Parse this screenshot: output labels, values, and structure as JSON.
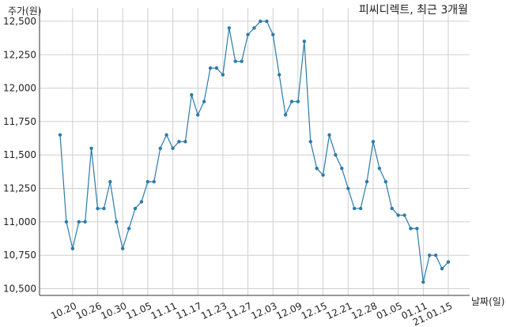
{
  "chart_data": {
    "type": "line",
    "title": "피씨디렉트, 최근 3개월",
    "ylabel": "주가(원)",
    "xlabel": "날짜(일)",
    "ylim": [
      10450,
      12600
    ],
    "yticks": [
      10500,
      10750,
      11000,
      11250,
      11500,
      11750,
      12000,
      12250,
      12500
    ],
    "ytick_labels": [
      "10,500",
      "10,750",
      "11,000",
      "11,250",
      "11,500",
      "11,750",
      "12,000",
      "12,250",
      "12,500"
    ],
    "xticks": [
      {
        "index": 2,
        "label": "10.20"
      },
      {
        "index": 6,
        "label": "10.26"
      },
      {
        "index": 10,
        "label": "10.30"
      },
      {
        "index": 14,
        "label": "11.05"
      },
      {
        "index": 18,
        "label": "11.11"
      },
      {
        "index": 22,
        "label": "11.17"
      },
      {
        "index": 26,
        "label": "11.23"
      },
      {
        "index": 30,
        "label": "11.27"
      },
      {
        "index": 34,
        "label": "12.03"
      },
      {
        "index": 38,
        "label": "12.09"
      },
      {
        "index": 42,
        "label": "12.15"
      },
      {
        "index": 46,
        "label": "12.21"
      },
      {
        "index": 50,
        "label": "12.28"
      },
      {
        "index": 54,
        "label": "01.05"
      },
      {
        "index": 58,
        "label": "01.11"
      },
      {
        "index": 62,
        "label": "21.01.15"
      }
    ],
    "grid": true,
    "series": [
      {
        "color": "#2b7bab",
        "values": [
          11650,
          11000,
          10800,
          11000,
          11000,
          11550,
          11100,
          11100,
          11300,
          11000,
          10800,
          10950,
          11100,
          11150,
          11300,
          11300,
          11550,
          11650,
          11550,
          11600,
          11600,
          11950,
          11800,
          11900,
          12150,
          12150,
          12100,
          12450,
          12200,
          12200,
          12400,
          12450,
          12500,
          12500,
          12400,
          12100,
          11800,
          11900,
          11900,
          12350,
          11600,
          11400,
          11350,
          11650,
          11500,
          11400,
          11250,
          11100,
          11100,
          11300,
          11600,
          11400,
          11300,
          11100,
          11050,
          11050,
          10950,
          10950,
          10550,
          10750,
          10750,
          10650,
          10700
        ]
      }
    ]
  }
}
